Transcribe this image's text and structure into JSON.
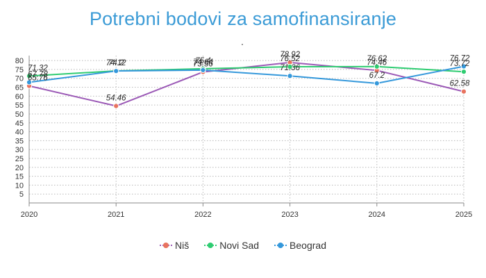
{
  "chart_data": {
    "type": "line",
    "title": "Potrebni bodovi za samofinansiranje",
    "categories": [
      "2020",
      "2021",
      "2022",
      "2023",
      "2024",
      "2025"
    ],
    "y_ticks": [
      5,
      10,
      15,
      20,
      25,
      30,
      35,
      40,
      45,
      50,
      55,
      60,
      65,
      70,
      75,
      80
    ],
    "ylim": [
      0,
      82
    ],
    "grid": true,
    "legend_position": "bottom",
    "series": [
      {
        "name": "Niš",
        "color": "#e8735f",
        "line_color": "#9b59b6",
        "values": [
          65.76,
          54.46,
          73.56,
          78.92,
          74.46,
          62.58
        ],
        "labels": [
          "65.76",
          "54.46",
          "73.56",
          "78.92",
          "74.46",
          "62.58"
        ]
      },
      {
        "name": "Novi Sad",
        "color": "#2ecc71",
        "line_color": "#2ecc71",
        "values": [
          71.32,
          74.2,
          75.4,
          76.52,
          76.62,
          73.72
        ],
        "labels": [
          "71.32",
          "74.2",
          "75.4",
          "76.52",
          "76.62",
          "73.72"
        ]
      },
      {
        "name": "Beograd",
        "color": "#3498db",
        "line_color": "#3498db",
        "values": [
          67.78,
          74.12,
          74.64,
          71.36,
          67.2,
          76.72
        ],
        "labels": [
          "67.78",
          "74.12",
          "74.64",
          "71.36",
          "67.2",
          "76.72"
        ]
      }
    ]
  }
}
